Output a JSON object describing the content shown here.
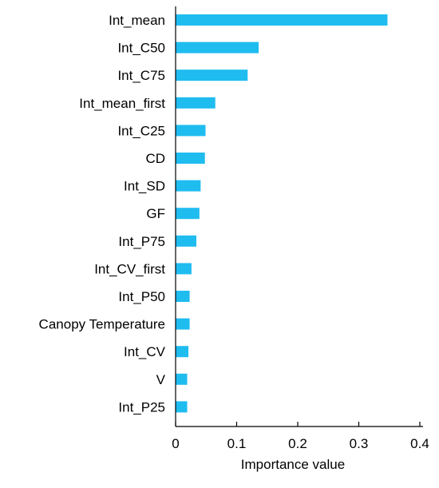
{
  "chart_data": {
    "type": "bar",
    "orientation": "horizontal",
    "title": "",
    "xlabel": "Importance value",
    "ylabel": "",
    "xlim": [
      0,
      0.4
    ],
    "xticks": [
      0,
      0.1,
      0.2,
      0.3,
      0.4
    ],
    "xtick_labels": [
      "0",
      "0.1",
      "0.2",
      "0.3",
      "0.4"
    ],
    "categories": [
      "Int_mean",
      "Int_C50",
      "Int_C75",
      "Int_mean_first",
      "Int_C25",
      "CD",
      "Int_SD",
      "GF",
      "Int_P75",
      "Int_CV_first",
      "Int_P50",
      "Canopy Temperature",
      "Int_CV",
      "V",
      "Int_P25"
    ],
    "values": [
      0.347,
      0.136,
      0.118,
      0.065,
      0.049,
      0.048,
      0.041,
      0.039,
      0.034,
      0.026,
      0.023,
      0.023,
      0.021,
      0.019,
      0.019
    ],
    "bar_color": "#1fbcf0",
    "grid": false,
    "legend": "none"
  }
}
